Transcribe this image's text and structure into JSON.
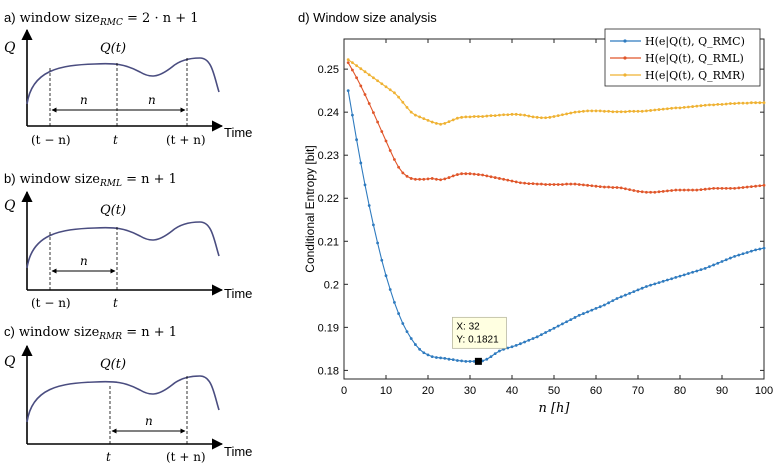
{
  "left_panels": {
    "a": {
      "prefix": "a)",
      "title_text": "window size",
      "subscript": "RMC",
      "formula": " = 2 · n + 1",
      "y_axis": "Q",
      "curve_label": "Q(t)",
      "x_axis": "Time",
      "ticks": [
        "(t − n)",
        "t",
        "(t + n)"
      ],
      "span_labels": [
        "n",
        "n"
      ]
    },
    "b": {
      "prefix": "b)",
      "title_text": "window size",
      "subscript": "RML",
      "formula": " = n + 1",
      "y_axis": "Q",
      "curve_label": "Q(t)",
      "x_axis": "Time",
      "ticks": [
        "(t − n)",
        "t"
      ],
      "span_labels": [
        "n"
      ]
    },
    "c": {
      "prefix": "c)",
      "title_text": "window size",
      "subscript": "RMR",
      "formula": " = n + 1",
      "y_axis": "Q",
      "curve_label": "Q(t)",
      "x_axis": "Time",
      "ticks": [
        "t",
        "(t + n)"
      ],
      "span_labels": [
        "n"
      ]
    }
  },
  "chart_data": {
    "type": "line",
    "title": "d) Window size analysis",
    "xlabel": "n [h]",
    "ylabel": "Conditional Entropy [bit]",
    "xlim": [
      0,
      100
    ],
    "ylim": [
      0.178,
      0.257
    ],
    "xticks": [
      0,
      10,
      20,
      30,
      40,
      50,
      60,
      70,
      80,
      90,
      100
    ],
    "yticks": [
      0.18,
      0.19,
      0.2,
      0.21,
      0.22,
      0.23,
      0.24,
      0.25
    ],
    "legend_position": "top-right",
    "x": [
      1,
      2,
      3,
      4,
      5,
      6,
      7,
      8,
      9,
      10,
      11,
      12,
      13,
      14,
      15,
      16,
      17,
      18,
      19,
      20,
      21,
      22,
      23,
      24,
      25,
      26,
      27,
      28,
      29,
      30,
      31,
      32,
      33,
      34,
      35,
      36,
      37,
      38,
      39,
      40,
      41,
      42,
      43,
      44,
      45,
      46,
      47,
      48,
      49,
      50,
      51,
      52,
      53,
      54,
      55,
      56,
      57,
      58,
      59,
      60,
      61,
      62,
      63,
      64,
      65,
      66,
      67,
      68,
      69,
      70,
      71,
      72,
      73,
      74,
      75,
      76,
      77,
      78,
      79,
      80,
      81,
      82,
      83,
      84,
      85,
      86,
      87,
      88,
      89,
      90,
      91,
      92,
      93,
      94,
      95,
      96,
      97,
      98,
      99,
      100
    ],
    "series": [
      {
        "name": "H(e|Q(t), Q_RMC)",
        "color": "#2f7bbf",
        "values": [
          0.245,
          0.2393,
          0.2336,
          0.2282,
          0.2231,
          0.2183,
          0.2138,
          0.2096,
          0.2056,
          0.202,
          0.1988,
          0.1958,
          0.1932,
          0.1909,
          0.189,
          0.1874,
          0.186,
          0.1849,
          0.1841,
          0.1836,
          0.1832,
          0.183,
          0.1829,
          0.1828,
          0.1826,
          0.1825,
          0.1823,
          0.1822,
          0.1821,
          0.1821,
          0.1821,
          0.1821,
          0.1822,
          0.1826,
          0.1832,
          0.1839,
          0.1845,
          0.1849,
          0.1852,
          0.1855,
          0.1858,
          0.1862,
          0.1866,
          0.187,
          0.1874,
          0.1878,
          0.1883,
          0.1888,
          0.1893,
          0.1898,
          0.1903,
          0.1908,
          0.1913,
          0.1918,
          0.1923,
          0.1928,
          0.1932,
          0.1936,
          0.194,
          0.1944,
          0.1948,
          0.1952,
          0.1957,
          0.1962,
          0.1967,
          0.1971,
          0.1975,
          0.1979,
          0.1983,
          0.1987,
          0.1991,
          0.1995,
          0.1998,
          0.2001,
          0.2004,
          0.2007,
          0.201,
          0.2013,
          0.2016,
          0.2019,
          0.2022,
          0.2025,
          0.2028,
          0.2031,
          0.2034,
          0.2037,
          0.2041,
          0.2045,
          0.2049,
          0.2053,
          0.2057,
          0.2061,
          0.2065,
          0.2068,
          0.2071,
          0.2074,
          0.2077,
          0.208,
          0.2082,
          0.2084
        ]
      },
      {
        "name": "H(e|Q(t), Q_RML)",
        "color": "#e0562a",
        "values": [
          0.2515,
          0.2498,
          0.248,
          0.2461,
          0.2441,
          0.242,
          0.2399,
          0.2377,
          0.2355,
          0.2333,
          0.2311,
          0.229,
          0.2272,
          0.2259,
          0.2251,
          0.2246,
          0.2244,
          0.2244,
          0.2244,
          0.2245,
          0.2246,
          0.2244,
          0.2243,
          0.2245,
          0.2248,
          0.2252,
          0.2255,
          0.2257,
          0.2257,
          0.2257,
          0.2256,
          0.2255,
          0.2254,
          0.2252,
          0.225,
          0.2248,
          0.2246,
          0.2244,
          0.2242,
          0.224,
          0.2238,
          0.2236,
          0.2235,
          0.2234,
          0.2234,
          0.2233,
          0.2233,
          0.2232,
          0.2232,
          0.2232,
          0.2232,
          0.2232,
          0.2233,
          0.2233,
          0.2233,
          0.2232,
          0.2231,
          0.223,
          0.2229,
          0.2228,
          0.2227,
          0.2226,
          0.2226,
          0.2225,
          0.2225,
          0.2224,
          0.2222,
          0.222,
          0.2218,
          0.2216,
          0.2215,
          0.2214,
          0.2214,
          0.2214,
          0.2215,
          0.2216,
          0.2217,
          0.2218,
          0.2219,
          0.2219,
          0.2219,
          0.2219,
          0.2219,
          0.2219,
          0.222,
          0.2221,
          0.2222,
          0.2223,
          0.2223,
          0.2223,
          0.2223,
          0.2223,
          0.2223,
          0.2224,
          0.2225,
          0.2226,
          0.2227,
          0.2228,
          0.2229,
          0.223
        ]
      },
      {
        "name": "H(e|Q(t), Q_RMR)",
        "color": "#efb233",
        "values": [
          0.2522,
          0.2515,
          0.2508,
          0.2501,
          0.2494,
          0.2487,
          0.248,
          0.2473,
          0.2466,
          0.2459,
          0.2452,
          0.2445,
          0.2435,
          0.2423,
          0.2411,
          0.24,
          0.2393,
          0.2389,
          0.2385,
          0.2381,
          0.2377,
          0.2374,
          0.2372,
          0.2374,
          0.2378,
          0.2382,
          0.2386,
          0.2388,
          0.2389,
          0.2389,
          0.239,
          0.239,
          0.239,
          0.2391,
          0.2392,
          0.2392,
          0.2393,
          0.2394,
          0.2394,
          0.2395,
          0.2395,
          0.2394,
          0.2393,
          0.2391,
          0.2389,
          0.2388,
          0.2387,
          0.2387,
          0.2388,
          0.239,
          0.2392,
          0.2394,
          0.2396,
          0.2398,
          0.24,
          0.2401,
          0.2402,
          0.2403,
          0.2403,
          0.2403,
          0.2403,
          0.2402,
          0.2402,
          0.2401,
          0.2401,
          0.2401,
          0.2401,
          0.2402,
          0.2402,
          0.2402,
          0.2402,
          0.2403,
          0.2404,
          0.2405,
          0.2406,
          0.2407,
          0.2408,
          0.2409,
          0.241,
          0.241,
          0.2411,
          0.2412,
          0.2413,
          0.2414,
          0.2415,
          0.2416,
          0.2417,
          0.2417,
          0.2418,
          0.2418,
          0.2419,
          0.242,
          0.242,
          0.2421,
          0.2421,
          0.2421,
          0.2422,
          0.2422,
          0.2422,
          0.2422
        ]
      }
    ],
    "annotation": {
      "x": 32,
      "y": 0.1821,
      "text": [
        "X: 32",
        "Y: 0.1821"
      ]
    }
  }
}
